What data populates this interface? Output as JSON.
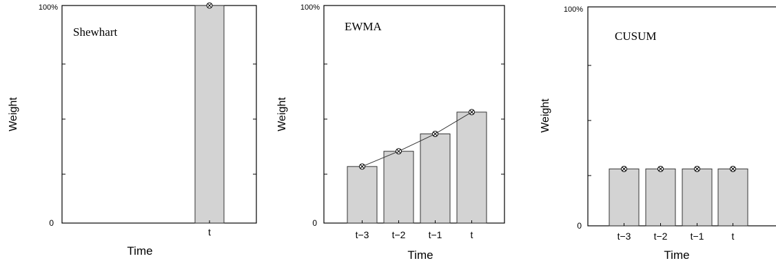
{
  "chart_data": [
    {
      "type": "bar",
      "title": "Shewhart",
      "xlabel": "Time",
      "ylabel": "Weight",
      "ylim": [
        0,
        100
      ],
      "y_tick_labels": [
        "0",
        "100%"
      ],
      "categories": [
        "t"
      ],
      "values": [
        100
      ],
      "markers": "circle-x on bar tops",
      "connecting_line": false,
      "grid": false
    },
    {
      "type": "bar",
      "title": "EWMA",
      "xlabel": "Time",
      "ylabel": "Weight",
      "ylim": [
        0,
        100
      ],
      "y_tick_labels": [
        "0",
        "100%"
      ],
      "categories": [
        "t−3",
        "t−2",
        "t−1",
        "t"
      ],
      "values": [
        26,
        33,
        41,
        51
      ],
      "markers": "circle-x on bar tops",
      "connecting_line": true,
      "grid": false
    },
    {
      "type": "bar",
      "title": "CUSUM",
      "xlabel": "Time",
      "ylabel": "Weight",
      "ylim": [
        0,
        100
      ],
      "y_tick_labels": [
        "0",
        "100%"
      ],
      "categories": [
        "t−3",
        "t−2",
        "t−1",
        "t"
      ],
      "values": [
        26,
        26,
        26,
        26
      ],
      "markers": "circle-x on bar tops",
      "connecting_line": false,
      "grid": false
    }
  ],
  "colors": {
    "bar_fill": "#d3d3d3",
    "bar_stroke": "#333333",
    "axis": "#000000",
    "line": "#333333"
  }
}
